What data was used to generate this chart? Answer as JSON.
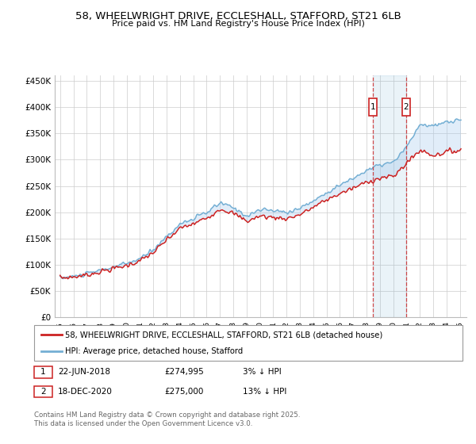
{
  "title_line1": "58, WHEELWRIGHT DRIVE, ECCLESHALL, STAFFORD, ST21 6LB",
  "title_line2": "Price paid vs. HM Land Registry's House Price Index (HPI)",
  "yticks": [
    0,
    50000,
    100000,
    150000,
    200000,
    250000,
    300000,
    350000,
    400000,
    450000
  ],
  "ytick_labels": [
    "£0",
    "£50K",
    "£100K",
    "£150K",
    "£200K",
    "£250K",
    "£300K",
    "£350K",
    "£400K",
    "£450K"
  ],
  "hpi_color": "#74afd4",
  "price_color": "#cc2222",
  "fill_color": "#aaccee",
  "marker1_date": 2018.47,
  "marker2_date": 2020.97,
  "marker1_price": 274995,
  "marker2_price": 275000,
  "marker1_year_str": "22-JUN-2018",
  "marker2_year_str": "18-DEC-2020",
  "marker1_pct": "3% ↓ HPI",
  "marker2_pct": "13% ↓ HPI",
  "legend_line1": "58, WHEELWRIGHT DRIVE, ECCLESHALL, STAFFORD, ST21 6LB (detached house)",
  "legend_line2": "HPI: Average price, detached house, Stafford",
  "footer": "Contains HM Land Registry data © Crown copyright and database right 2025.\nThis data is licensed under the Open Government Licence v3.0.",
  "background_color": "#ffffff",
  "grid_color": "#cccccc",
  "hpi_base": {
    "1995": 75000,
    "1996": 78000,
    "1997": 83000,
    "1998": 90000,
    "1999": 96000,
    "2000": 103000,
    "2001": 112000,
    "2002": 130000,
    "2003": 155000,
    "2004": 178000,
    "2005": 188000,
    "2006": 200000,
    "2007": 218000,
    "2008": 208000,
    "2009": 193000,
    "2010": 205000,
    "2011": 203000,
    "2012": 200000,
    "2013": 208000,
    "2014": 222000,
    "2015": 238000,
    "2016": 252000,
    "2017": 265000,
    "2018": 280000,
    "2019": 290000,
    "2020": 295000,
    "2021": 325000,
    "2022": 368000,
    "2023": 363000,
    "2024": 372000,
    "2025": 375000
  },
  "price_base": {
    "1995": 75000,
    "1996": 77000,
    "1997": 81000,
    "1998": 87000,
    "1999": 93000,
    "2000": 99000,
    "2001": 108000,
    "2002": 124000,
    "2003": 148000,
    "2004": 170000,
    "2005": 178000,
    "2006": 190000,
    "2007": 207000,
    "2008": 197000,
    "2009": 183000,
    "2010": 193000,
    "2011": 190000,
    "2012": 188000,
    "2013": 196000,
    "2014": 210000,
    "2015": 224000,
    "2016": 236000,
    "2017": 246000,
    "2018": 258000,
    "2019": 265000,
    "2020": 268000,
    "2021": 295000,
    "2022": 318000,
    "2023": 308000,
    "2024": 315000,
    "2025": 318000
  }
}
